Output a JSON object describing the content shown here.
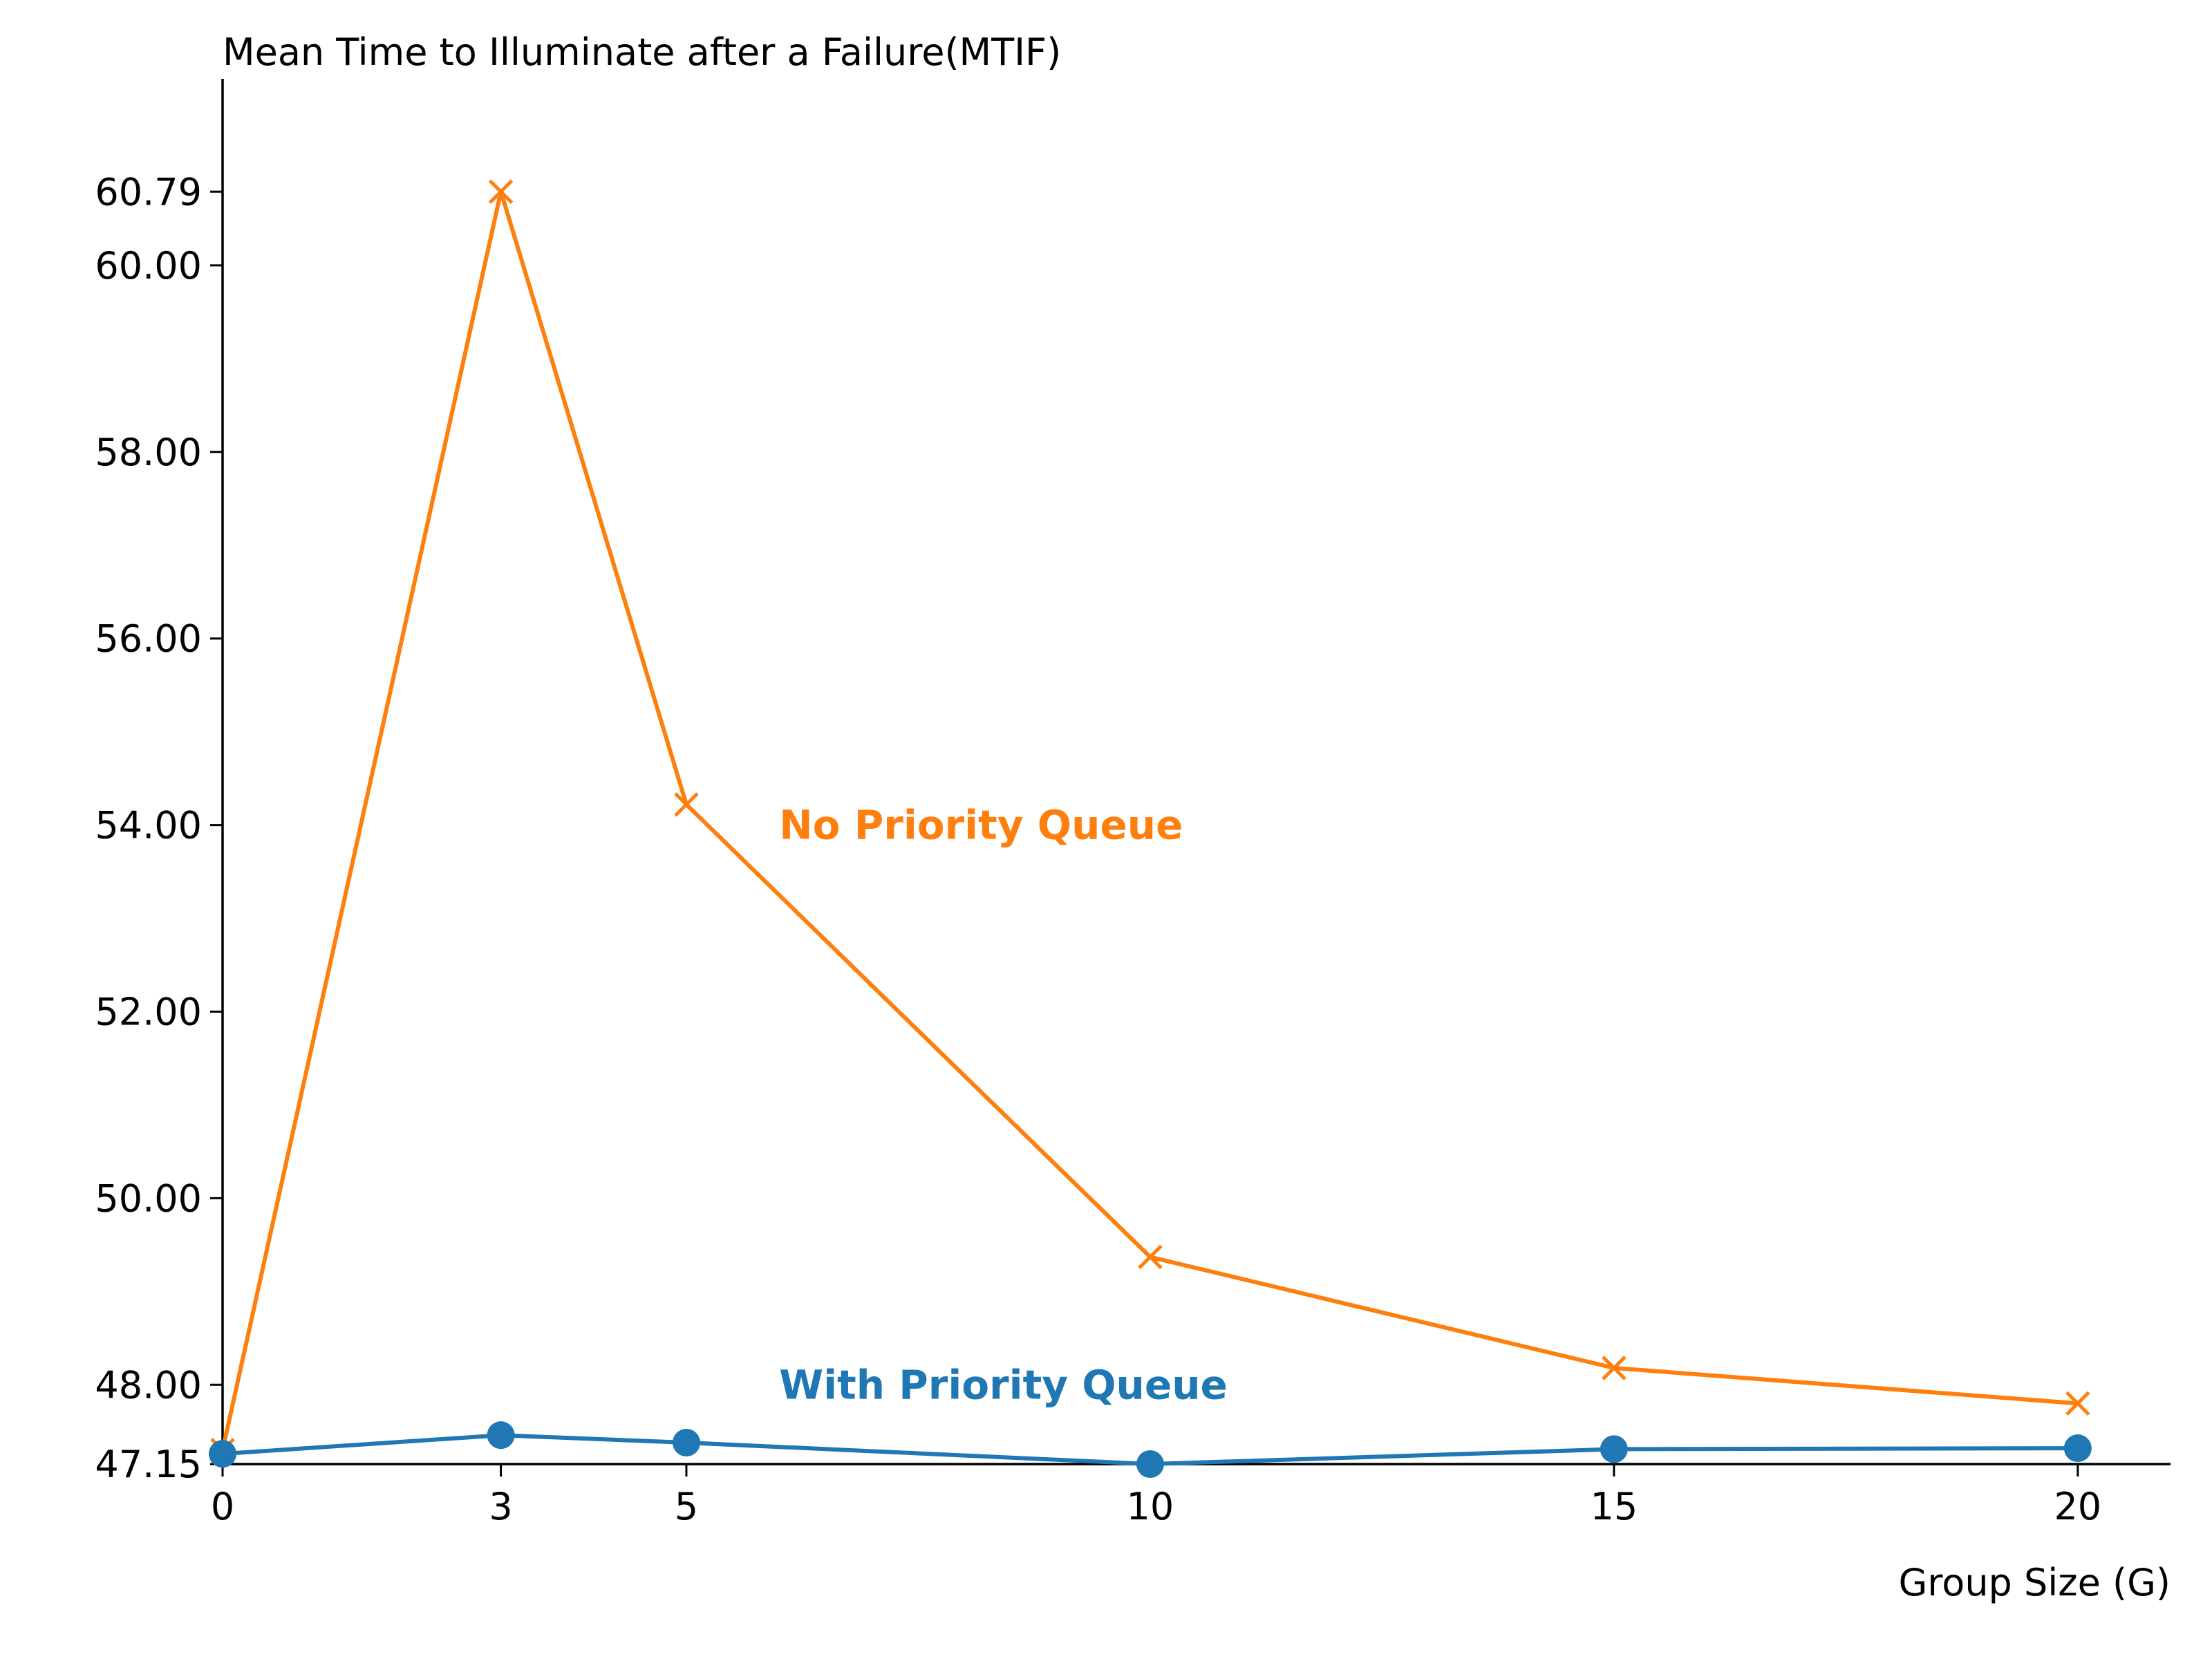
{
  "chart_data": {
    "type": "line",
    "title": "Mean Time to Illuminate after a Failure(MTIF)",
    "xlabel": "Group Size (G)",
    "ylabel": "",
    "x": [
      0,
      3,
      5,
      10,
      15,
      20
    ],
    "xlim": [
      0,
      21
    ],
    "ylim": [
      47.15,
      62.0
    ],
    "xticks": [
      0,
      3,
      5,
      10,
      15,
      20
    ],
    "xtick_labels": [
      "0",
      "3",
      "5",
      "10",
      "15",
      "20"
    ],
    "yticks": [
      47.15,
      48.0,
      50.0,
      52.0,
      54.0,
      56.0,
      58.0,
      60.0,
      60.79
    ],
    "ytick_labels": [
      "47.15",
      "48.00",
      "50.00",
      "52.00",
      "54.00",
      "56.00",
      "58.00",
      "60.00",
      "60.79"
    ],
    "grid": false,
    "legend": "none",
    "series": [
      {
        "name": "No Priority Queue",
        "color": "#ff7f0e",
        "marker": "x",
        "values": [
          47.3,
          60.79,
          54.22,
          49.37,
          48.18,
          47.8
        ]
      },
      {
        "name": "With Priority Queue",
        "color": "#1f77b4",
        "marker": "circle",
        "values": [
          47.26,
          47.46,
          47.38,
          47.15,
          47.31,
          47.32
        ]
      }
    ],
    "annotations": [
      {
        "text": "No Priority Queue",
        "x": 6.0,
        "y": 54.0,
        "color": "#ff7f0e"
      },
      {
        "text": "With Priority Queue",
        "x": 6.0,
        "y": 48.0,
        "color": "#1f77b4"
      }
    ]
  }
}
